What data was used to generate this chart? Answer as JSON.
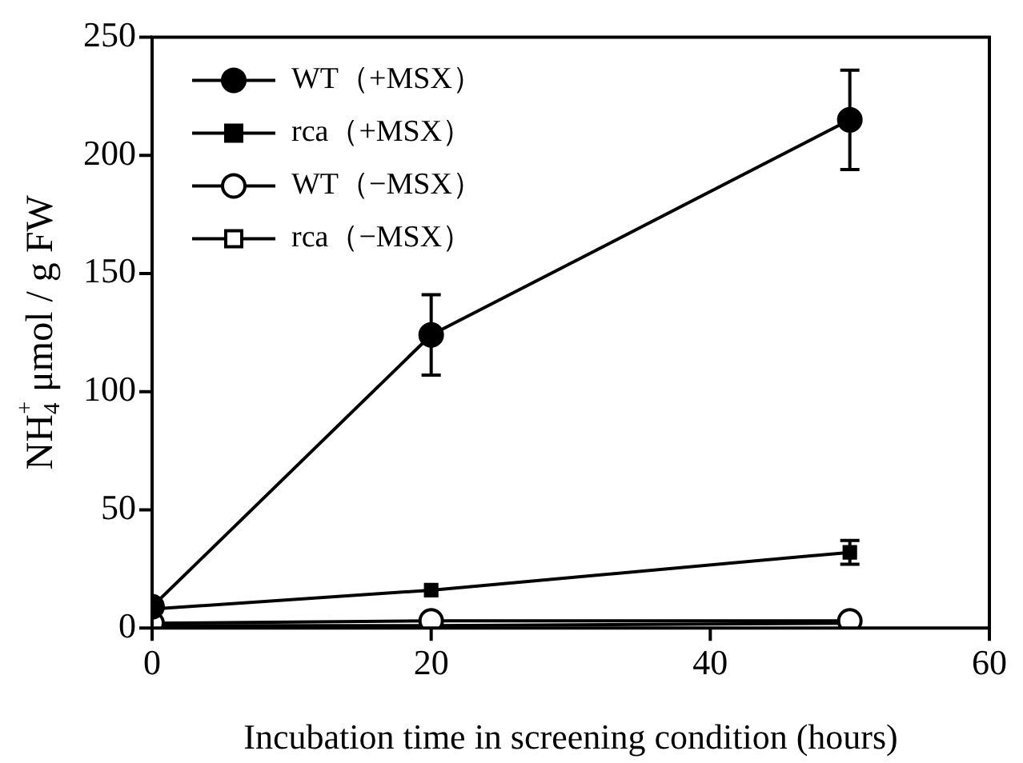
{
  "chart_data": {
    "type": "line",
    "xlabel": "Incubation time in screening condition (hours)",
    "ylabel": "NH$_{4}$$^{+}$ μmol / g FW",
    "x": [
      0,
      20,
      50
    ],
    "xlim": [
      0,
      60
    ],
    "xticks": [
      0,
      20,
      40,
      60
    ],
    "ylim": [
      0,
      250
    ],
    "yticks": [
      0,
      50,
      100,
      150,
      200,
      250
    ],
    "grid": false,
    "legend": "top left",
    "series": [
      {
        "name": "WT（+MSX）",
        "color": "#000000",
        "marker": "circle",
        "colors": [
          "#000000",
          "#000000",
          "#000000"
        ],
        "values": [
          9,
          124,
          215
        ],
        "errors": [
          null,
          17,
          21
        ]
      },
      {
        "name": "rca（+MSX）",
        "color": "#000000",
        "marker": "square",
        "colors": [
          "#000000",
          "#000000",
          "#000000"
        ],
        "values": [
          8,
          16,
          32
        ],
        "errors": [
          null,
          null,
          5
        ]
      },
      {
        "name": "WT（−MSX）",
        "color": "#000000",
        "marker": "circle",
        "colors": [
          "#ffffff",
          "#ffffff",
          "#ffffff"
        ],
        "values": [
          2,
          3,
          3
        ]
      },
      {
        "name": "rca（−MSX）",
        "color": "#000000",
        "marker": "square",
        "colors": [
          "#ffffff",
          "#ffffff",
          "#ffffff"
        ],
        "values": [
          1,
          1,
          2
        ]
      }
    ]
  }
}
